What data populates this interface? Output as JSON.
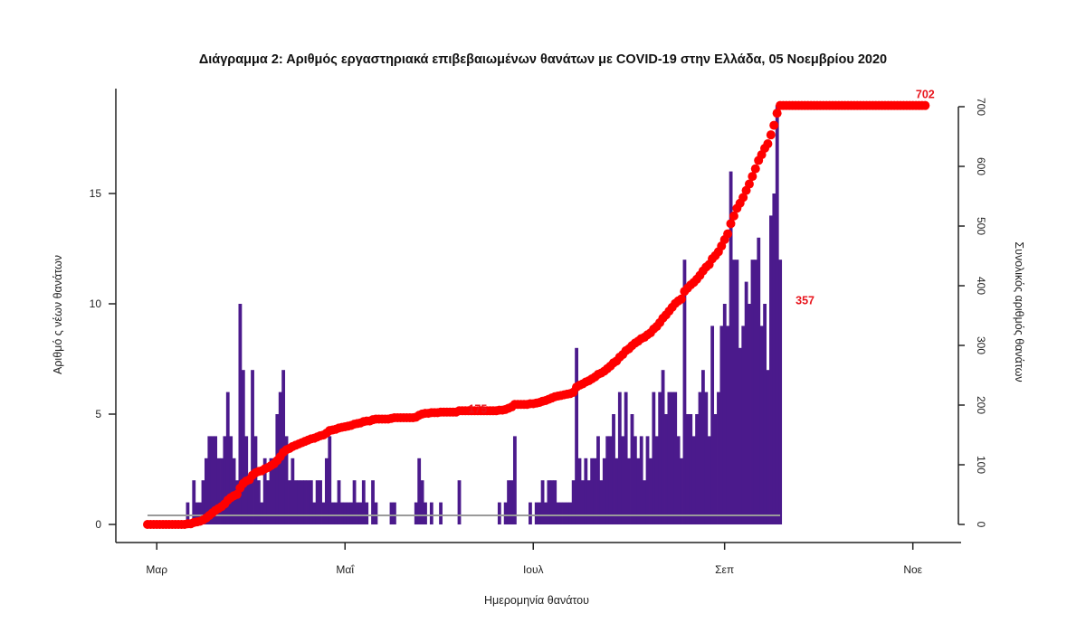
{
  "chart_data": {
    "type": "bar",
    "title": "Διάγραμμα 2: Αριθμός εργαστηριακά επιβεβαιωμένων θανάτων με COVID-19 στην Ελλάδα, 05 Νοεμβρίου 2020",
    "xlabel": "Ημερομηνία θανάτου",
    "ylabel": "Αριθμό ς νέων θανάτων",
    "y2label": "Συνολικός αριθμός θανάτων",
    "x_start": "2020-02-27",
    "x_ticks": [
      {
        "label": "Μαρ",
        "day": 3
      },
      {
        "label": "Μαΐ",
        "day": 64
      },
      {
        "label": "Ιουλ",
        "day": 125
      },
      {
        "label": "Σεπ",
        "day": 187
      },
      {
        "label": "Νοε",
        "day": 248
      }
    ],
    "ylim": [
      0,
      19
    ],
    "yticks": [
      0,
      5,
      10,
      15
    ],
    "y2lim": [
      0,
      700
    ],
    "y2ticks": [
      0,
      100,
      200,
      300,
      400,
      500,
      600,
      700
    ],
    "bar_color": "#4b1a8c",
    "line_color": "#ff0000",
    "series": [
      {
        "name": "Νέοι θάνατοι",
        "type": "bar",
        "values": [
          0,
          0,
          0,
          0,
          0,
          0,
          0,
          0,
          0,
          0,
          0,
          0,
          0,
          1,
          0,
          2,
          1,
          1,
          2,
          3,
          4,
          4,
          4,
          3,
          3,
          4,
          6,
          4,
          3,
          2,
          10,
          7,
          4,
          2,
          7,
          4,
          2,
          1,
          3,
          2,
          3,
          3,
          5,
          6,
          7,
          4,
          2,
          3,
          2,
          2,
          2,
          2,
          2,
          2,
          1,
          2,
          2,
          1,
          3,
          4,
          1,
          1,
          2,
          1,
          1,
          1,
          1,
          2,
          1,
          1,
          2,
          1,
          0,
          2,
          1,
          0,
          0,
          0,
          0,
          1,
          1,
          0,
          0,
          0,
          0,
          0,
          0,
          1,
          3,
          2,
          1,
          0,
          1,
          0,
          0,
          1,
          0,
          0,
          0,
          0,
          0,
          2,
          0,
          0,
          0,
          0,
          0,
          0,
          0,
          0,
          0,
          0,
          0,
          0,
          1,
          0,
          1,
          2,
          2,
          4,
          0,
          0,
          0,
          0,
          1,
          0,
          1,
          1,
          2,
          1,
          2,
          2,
          2,
          1,
          1,
          1,
          1,
          1,
          2,
          8,
          3,
          2,
          3,
          2,
          3,
          3,
          4,
          2,
          3,
          4,
          4,
          5,
          3,
          6,
          4,
          6,
          3,
          5,
          4,
          3,
          4,
          2,
          4,
          3,
          6,
          4,
          6,
          7,
          5,
          6,
          6,
          6,
          4,
          3,
          12,
          5,
          5,
          4,
          5,
          6,
          7,
          6,
          4,
          9,
          5,
          6,
          9,
          10,
          9,
          16,
          12,
          12,
          8,
          9,
          11,
          10,
          12,
          12,
          13,
          9,
          10,
          7,
          14,
          15,
          19,
          12,
          0,
          0,
          0,
          0,
          0,
          0,
          0,
          0,
          0,
          0,
          0,
          0,
          0,
          0,
          0,
          0,
          0,
          0,
          0,
          0,
          0,
          0,
          0,
          0,
          0,
          0,
          0,
          0,
          0,
          0,
          0,
          0,
          0,
          0,
          0,
          0,
          0,
          0,
          0,
          0,
          0,
          0,
          0,
          0,
          0,
          0,
          0
        ]
      }
    ],
    "annotations": [
      {
        "label": "175",
        "day": 107,
        "value": 175
      },
      {
        "label": "357",
        "day": 216,
        "value": 357
      },
      {
        "label": "702",
        "day": 252,
        "value": 702
      }
    ]
  }
}
